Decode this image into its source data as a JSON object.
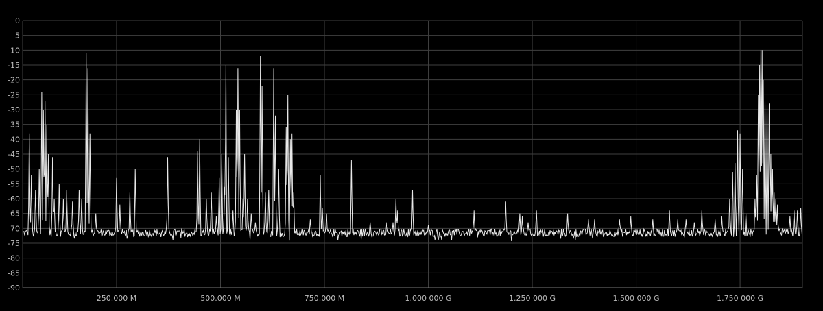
{
  "chart_data": {
    "type": "line",
    "title": "",
    "xlabel": "",
    "ylabel": "",
    "grid": true,
    "legend": "none",
    "xlim": [
      24,
      1900
    ],
    "ylim": [
      -90,
      0
    ],
    "trace_color": "#e8e8e8",
    "grid_color": "#404040",
    "background_color": "#000000",
    "y_ticks": [
      {
        "value": 0,
        "label": "0"
      },
      {
        "value": -5,
        "label": "-5"
      },
      {
        "value": -10,
        "label": "-10"
      },
      {
        "value": -15,
        "label": "-15"
      },
      {
        "value": -20,
        "label": "-20"
      },
      {
        "value": -25,
        "label": "-25"
      },
      {
        "value": -30,
        "label": "-30"
      },
      {
        "value": -35,
        "label": "-35"
      },
      {
        "value": -40,
        "label": "-40"
      },
      {
        "value": -45,
        "label": "-45"
      },
      {
        "value": -50,
        "label": "-50"
      },
      {
        "value": -55,
        "label": "-55"
      },
      {
        "value": -60,
        "label": "-60"
      },
      {
        "value": -65,
        "label": "-65"
      },
      {
        "value": -70,
        "label": "-70"
      },
      {
        "value": -75,
        "label": "-75"
      },
      {
        "value": -80,
        "label": "-80"
      },
      {
        "value": -85,
        "label": "-85"
      },
      {
        "value": -90,
        "label": "-90"
      }
    ],
    "x_ticks": [
      {
        "value": 250,
        "label": "250.000 M"
      },
      {
        "value": 500,
        "label": "500.000 M"
      },
      {
        "value": 750,
        "label": "750.000 M"
      },
      {
        "value": 1000,
        "label": "1.000 000 G"
      },
      {
        "value": 1250,
        "label": "1.250 000 G"
      },
      {
        "value": 1500,
        "label": "1.500 000 G"
      },
      {
        "value": 1750,
        "label": "1.750 000 G"
      }
    ],
    "noise_floor": -71.5,
    "peaks": [
      {
        "x": 40,
        "y": -38
      },
      {
        "x": 45,
        "y": -52
      },
      {
        "x": 55,
        "y": -57
      },
      {
        "x": 64,
        "y": -50
      },
      {
        "x": 70,
        "y": -24
      },
      {
        "x": 74,
        "y": -30
      },
      {
        "x": 78,
        "y": -27
      },
      {
        "x": 82,
        "y": -35
      },
      {
        "x": 86,
        "y": -45
      },
      {
        "x": 96,
        "y": -46
      },
      {
        "x": 100,
        "y": -60
      },
      {
        "x": 112,
        "y": -55
      },
      {
        "x": 122,
        "y": -60
      },
      {
        "x": 130,
        "y": -57
      },
      {
        "x": 144,
        "y": -61
      },
      {
        "x": 160,
        "y": -57
      },
      {
        "x": 166,
        "y": -60
      },
      {
        "x": 177,
        "y": -11
      },
      {
        "x": 181,
        "y": -16
      },
      {
        "x": 186,
        "y": -38
      },
      {
        "x": 200,
        "y": -65
      },
      {
        "x": 250,
        "y": -53
      },
      {
        "x": 258,
        "y": -62
      },
      {
        "x": 282,
        "y": -58
      },
      {
        "x": 295,
        "y": -50
      },
      {
        "x": 373,
        "y": -46
      },
      {
        "x": 445,
        "y": -44
      },
      {
        "x": 450,
        "y": -40
      },
      {
        "x": 466,
        "y": -60
      },
      {
        "x": 478,
        "y": -58
      },
      {
        "x": 490,
        "y": -66
      },
      {
        "x": 497,
        "y": -53
      },
      {
        "x": 503,
        "y": -45
      },
      {
        "x": 510,
        "y": -56
      },
      {
        "x": 513,
        "y": -15
      },
      {
        "x": 519,
        "y": -46
      },
      {
        "x": 530,
        "y": -64
      },
      {
        "x": 538,
        "y": -30
      },
      {
        "x": 542,
        "y": -16
      },
      {
        "x": 546,
        "y": -30
      },
      {
        "x": 554,
        "y": -60
      },
      {
        "x": 558,
        "y": -45
      },
      {
        "x": 565,
        "y": -60
      },
      {
        "x": 574,
        "y": -65
      },
      {
        "x": 584,
        "y": -68
      },
      {
        "x": 596,
        "y": -12
      },
      {
        "x": 600,
        "y": -22
      },
      {
        "x": 608,
        "y": -58
      },
      {
        "x": 616,
        "y": -57
      },
      {
        "x": 628,
        "y": -16
      },
      {
        "x": 632,
        "y": -32
      },
      {
        "x": 640,
        "y": -50
      },
      {
        "x": 658,
        "y": -36
      },
      {
        "x": 662,
        "y": -25
      },
      {
        "x": 668,
        "y": -40
      },
      {
        "x": 672,
        "y": -38
      },
      {
        "x": 676,
        "y": -58
      },
      {
        "x": 716,
        "y": -67
      },
      {
        "x": 740,
        "y": -52
      },
      {
        "x": 745,
        "y": -63
      },
      {
        "x": 755,
        "y": -65
      },
      {
        "x": 815,
        "y": -47
      },
      {
        "x": 860,
        "y": -68
      },
      {
        "x": 900,
        "y": -68
      },
      {
        "x": 915,
        "y": -68
      },
      {
        "x": 922,
        "y": -60
      },
      {
        "x": 926,
        "y": -64
      },
      {
        "x": 962,
        "y": -57
      },
      {
        "x": 1000,
        "y": -69
      },
      {
        "x": 1110,
        "y": -64
      },
      {
        "x": 1186,
        "y": -61
      },
      {
        "x": 1220,
        "y": -65
      },
      {
        "x": 1226,
        "y": -66
      },
      {
        "x": 1240,
        "y": -68
      },
      {
        "x": 1260,
        "y": -64
      },
      {
        "x": 1335,
        "y": -65
      },
      {
        "x": 1385,
        "y": -67
      },
      {
        "x": 1400,
        "y": -67
      },
      {
        "x": 1460,
        "y": -67
      },
      {
        "x": 1487,
        "y": -66
      },
      {
        "x": 1540,
        "y": -67
      },
      {
        "x": 1580,
        "y": -64
      },
      {
        "x": 1600,
        "y": -67
      },
      {
        "x": 1620,
        "y": -67
      },
      {
        "x": 1640,
        "y": -68
      },
      {
        "x": 1658,
        "y": -64
      },
      {
        "x": 1690,
        "y": -67
      },
      {
        "x": 1706,
        "y": -66
      },
      {
        "x": 1725,
        "y": -60
      },
      {
        "x": 1732,
        "y": -51
      },
      {
        "x": 1738,
        "y": -48
      },
      {
        "x": 1744,
        "y": -37
      },
      {
        "x": 1750,
        "y": -38
      },
      {
        "x": 1756,
        "y": -50
      },
      {
        "x": 1764,
        "y": -65
      },
      {
        "x": 1786,
        "y": -60
      },
      {
        "x": 1790,
        "y": -52
      },
      {
        "x": 1794,
        "y": -25
      },
      {
        "x": 1797,
        "y": -15
      },
      {
        "x": 1800,
        "y": -10
      },
      {
        "x": 1803,
        "y": -10
      },
      {
        "x": 1806,
        "y": -20
      },
      {
        "x": 1810,
        "y": -27
      },
      {
        "x": 1815,
        "y": -28
      },
      {
        "x": 1820,
        "y": -28
      },
      {
        "x": 1824,
        "y": -45
      },
      {
        "x": 1828,
        "y": -50
      },
      {
        "x": 1832,
        "y": -58
      },
      {
        "x": 1836,
        "y": -60
      },
      {
        "x": 1840,
        "y": -62
      },
      {
        "x": 1852,
        "y": -70
      },
      {
        "x": 1870,
        "y": -66
      },
      {
        "x": 1880,
        "y": -64
      },
      {
        "x": 1888,
        "y": -64
      },
      {
        "x": 1896,
        "y": -63
      }
    ]
  }
}
